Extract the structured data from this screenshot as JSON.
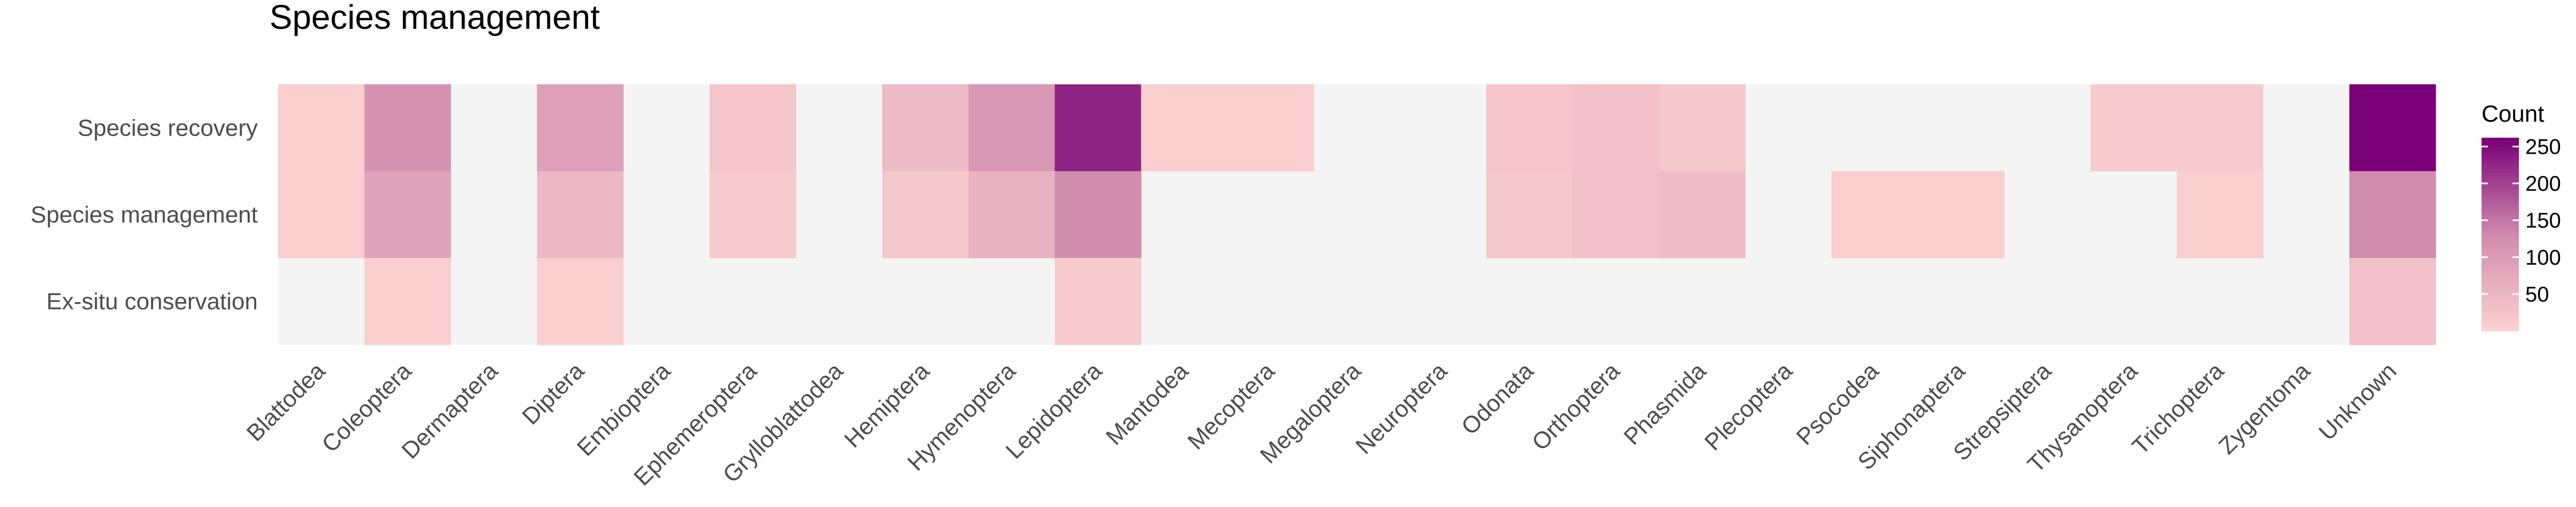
{
  "title": "Species management",
  "chart_data": {
    "type": "heatmap",
    "title": "Species management",
    "x_categories": [
      "Blattodea",
      "Coleoptera",
      "Dermaptera",
      "Diptera",
      "Embioptera",
      "Ephemeroptera",
      "Grylloblattodea",
      "Hemiptera",
      "Hymenoptera",
      "Lepidoptera",
      "Mantodea",
      "Mecoptera",
      "Megaloptera",
      "Neuroptera",
      "Odonata",
      "Orthoptera",
      "Phasmida",
      "Plecoptera",
      "Psocodea",
      "Siphonaptera",
      "Strepsiptera",
      "Thysanoptera",
      "Trichoptera",
      "Zygentoma",
      "Unknown"
    ],
    "y_categories": [
      "Species recovery",
      "Species management",
      "Ex-situ conservation"
    ],
    "values": [
      [
        10,
        120,
        null,
        95,
        null,
        25,
        null,
        45,
        110,
        230,
        10,
        10,
        null,
        null,
        25,
        35,
        20,
        null,
        null,
        null,
        null,
        15,
        15,
        null,
        262
      ],
      [
        10,
        85,
        null,
        50,
        null,
        15,
        null,
        20,
        60,
        130,
        null,
        null,
        null,
        null,
        20,
        35,
        40,
        null,
        10,
        10,
        null,
        null,
        10,
        null,
        130
      ],
      [
        null,
        10,
        null,
        10,
        null,
        null,
        null,
        null,
        null,
        15,
        null,
        null,
        null,
        null,
        null,
        null,
        null,
        null,
        null,
        null,
        null,
        null,
        null,
        null,
        35
      ]
    ],
    "missing_color": "#f4f4f4",
    "color_scale": {
      "low": "#fcd3d1",
      "mid": "#d18cae",
      "high": "#7a0177",
      "range": [
        0,
        262
      ]
    },
    "legend": {
      "title": "Count",
      "ticks": [
        50,
        100,
        150,
        200,
        250
      ],
      "placement": "right"
    }
  }
}
